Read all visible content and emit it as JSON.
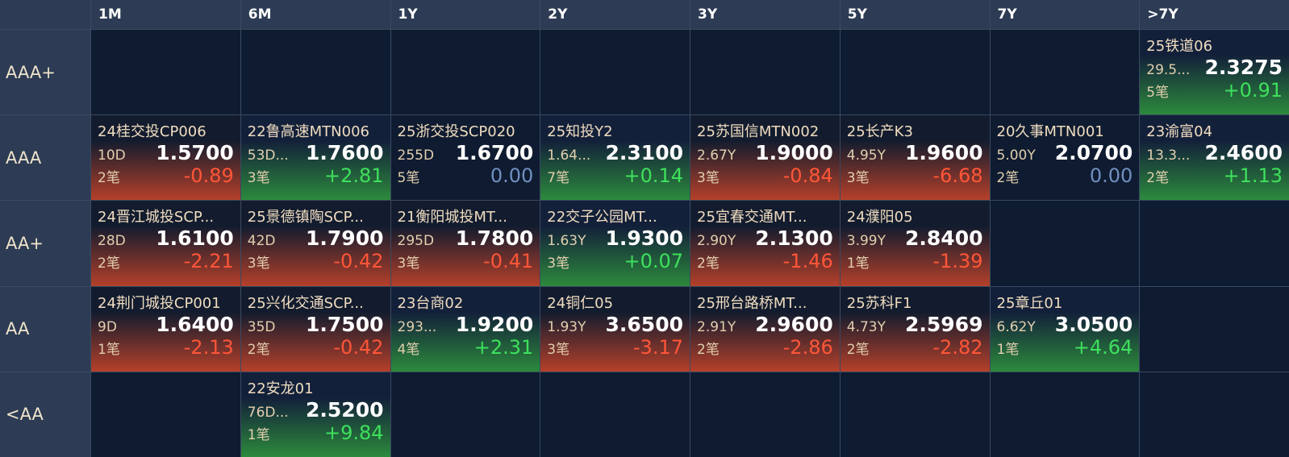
{
  "columns": [
    "1M",
    "6M",
    "1Y",
    "2Y",
    "3Y",
    "5Y",
    "7Y",
    ">7Y"
  ],
  "rows": [
    {
      "label": "AAA+",
      "cells": [
        null,
        null,
        null,
        null,
        null,
        null,
        null,
        {
          "name": "25铁道06",
          "term": "29.5...",
          "rate": "2.3275",
          "count": "5笔",
          "change": "+0.91"
        }
      ]
    },
    {
      "label": "AAA",
      "cells": [
        {
          "name": "24桂交投CP006",
          "term": "10D",
          "rate": "1.5700",
          "count": "2笔",
          "change": "-0.89"
        },
        {
          "name": "22鲁高速MTN006",
          "term": "53D...",
          "rate": "1.7600",
          "count": "3笔",
          "change": "+2.81"
        },
        {
          "name": "25浙交投SCP020",
          "term": "255D",
          "rate": "1.6700",
          "count": "5笔",
          "change": "0.00"
        },
        {
          "name": "25知投Y2",
          "term": "1.64...",
          "rate": "2.3100",
          "count": "7笔",
          "change": "+0.14"
        },
        {
          "name": "25苏国信MTN002",
          "term": "2.67Y",
          "rate": "1.9000",
          "count": "3笔",
          "change": "-0.84"
        },
        {
          "name": "25长产K3",
          "term": "4.95Y",
          "rate": "1.9600",
          "count": "3笔",
          "change": "-6.68"
        },
        {
          "name": "20久事MTN001",
          "term": "5.00Y",
          "rate": "2.0700",
          "count": "2笔",
          "change": "0.00"
        },
        {
          "name": "23渝富04",
          "term": "13.3...",
          "rate": "2.4600",
          "count": "2笔",
          "change": "+1.13"
        }
      ]
    },
    {
      "label": "AA+",
      "cells": [
        {
          "name": "24晋江城投SCP...",
          "term": "28D",
          "rate": "1.6100",
          "count": "2笔",
          "change": "-2.21"
        },
        {
          "name": "25景德镇陶SCP...",
          "term": "42D",
          "rate": "1.7900",
          "count": "3笔",
          "change": "-0.42"
        },
        {
          "name": "21衡阳城投MT...",
          "term": "295D",
          "rate": "1.7800",
          "count": "3笔",
          "change": "-0.41"
        },
        {
          "name": "22交子公园MT...",
          "term": "1.63Y",
          "rate": "1.9300",
          "count": "3笔",
          "change": "+0.07"
        },
        {
          "name": "25宜春交通MT...",
          "term": "2.90Y",
          "rate": "2.1300",
          "count": "2笔",
          "change": "-1.46"
        },
        {
          "name": "24濮阳05",
          "term": "3.99Y",
          "rate": "2.8400",
          "count": "1笔",
          "change": "-1.39"
        },
        null,
        null
      ]
    },
    {
      "label": "AA",
      "cells": [
        {
          "name": "24荆门城投CP001",
          "term": "9D",
          "rate": "1.6400",
          "count": "1笔",
          "change": "-2.13"
        },
        {
          "name": "25兴化交通SCP...",
          "term": "35D",
          "rate": "1.7500",
          "count": "2笔",
          "change": "-0.42"
        },
        {
          "name": "23台商02",
          "term": "293...",
          "rate": "1.9200",
          "count": "4笔",
          "change": "+2.31"
        },
        {
          "name": "24铜仁05",
          "term": "1.93Y",
          "rate": "3.6500",
          "count": "3笔",
          "change": "-3.17"
        },
        {
          "name": "25邢台路桥MT...",
          "term": "2.91Y",
          "rate": "2.9600",
          "count": "2笔",
          "change": "-2.86"
        },
        {
          "name": "25苏科F1",
          "term": "4.73Y",
          "rate": "2.5969",
          "count": "2笔",
          "change": "-2.82"
        },
        {
          "name": "25章丘01",
          "term": "6.62Y",
          "rate": "3.0500",
          "count": "1笔",
          "change": "+4.64"
        },
        null
      ]
    },
    {
      "label": "<AA",
      "cells": [
        null,
        {
          "name": "22安龙01",
          "term": "76D...",
          "rate": "2.5200",
          "count": "1笔",
          "change": "+9.84"
        },
        null,
        null,
        null,
        null,
        null,
        null
      ]
    }
  ]
}
